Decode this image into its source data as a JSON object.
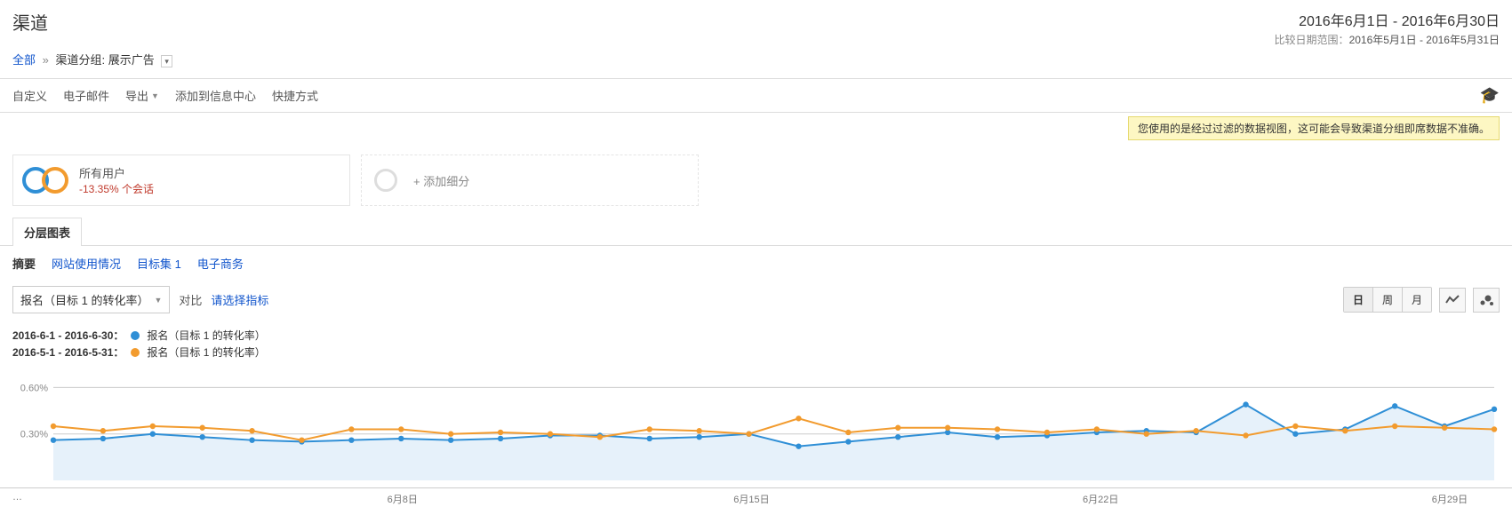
{
  "header": {
    "title": "渠道",
    "date_main": "2016年6月1日 - 2016年6月30日",
    "compare_label": "比较日期范围：",
    "compare_range": "2016年5月1日 - 2016年5月31日"
  },
  "breadcrumb": {
    "all": "全部",
    "group_label": "渠道分组:",
    "group_value": "展示广告"
  },
  "toolbar": {
    "customize": "自定义",
    "email": "电子邮件",
    "export": "导出",
    "add_dashboard": "添加到信息中心",
    "shortcut": "快捷方式"
  },
  "warning": "您使用的是经过过滤的数据视图，这可能会导致渠道分组即席数据不准确。",
  "segment": {
    "name": "所有用户",
    "delta": "-13.35%",
    "metric": "个会话",
    "add": "+ 添加细分"
  },
  "tab": {
    "main": "分层图表"
  },
  "subnav": {
    "summary": "摘要",
    "site_usage": "网站使用情况",
    "goal_set": "目标集 1",
    "ecommerce": "电子商务"
  },
  "metric_bar": {
    "selected": "报名（目标 1 的转化率）",
    "vs": "对比",
    "select_prompt": "请选择指标",
    "day": "日",
    "week": "周",
    "month": "月"
  },
  "legend": {
    "range_a": "2016-6-1 - 2016-6-30：",
    "range_b": "2016-5-1 - 2016-5-31：",
    "series_label": "报名（目标 1 的转化率）"
  },
  "chart": {
    "type": "line",
    "colors": {
      "a": "#2f8fd6",
      "b": "#f29b2e",
      "fill_a": "#e6f1fa",
      "grid": "#cccccc",
      "axis_text": "#888888"
    },
    "ylim": [
      0,
      0.7
    ],
    "yticks": [
      {
        "v": 0.3,
        "label": "0.30%"
      },
      {
        "v": 0.6,
        "label": "0.60%"
      }
    ],
    "xticks": [
      {
        "idx": 7,
        "label": "6月8日"
      },
      {
        "idx": 14,
        "label": "6月15日"
      },
      {
        "idx": 21,
        "label": "6月22日"
      },
      {
        "idx": 28,
        "label": "6月29日"
      }
    ],
    "n": 30,
    "series_a": [
      0.26,
      0.27,
      0.3,
      0.28,
      0.26,
      0.25,
      0.26,
      0.27,
      0.26,
      0.27,
      0.29,
      0.29,
      0.27,
      0.28,
      0.3,
      0.22,
      0.25,
      0.28,
      0.31,
      0.28,
      0.29,
      0.31,
      0.32,
      0.31,
      0.49,
      0.3,
      0.33,
      0.48,
      0.35,
      0.46
    ],
    "series_b": [
      0.35,
      0.32,
      0.35,
      0.34,
      0.32,
      0.26,
      0.33,
      0.33,
      0.3,
      0.31,
      0.3,
      0.28,
      0.33,
      0.32,
      0.3,
      0.4,
      0.31,
      0.34,
      0.34,
      0.33,
      0.31,
      0.33,
      0.3,
      0.32,
      0.29,
      0.35,
      0.32,
      0.35,
      0.34,
      0.33
    ],
    "marker_radius": 3.2,
    "line_width": 2
  }
}
